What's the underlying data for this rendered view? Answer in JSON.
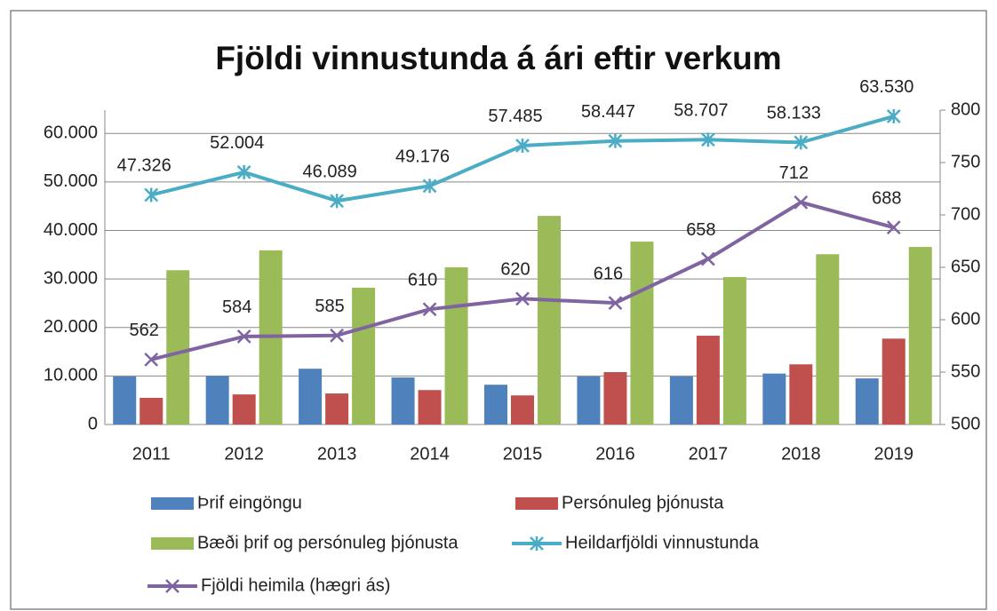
{
  "chart_data": {
    "type": "bar",
    "title": "Fjöldi vinnustunda á ári eftir verkum",
    "categories": [
      "2011",
      "2012",
      "2013",
      "2014",
      "2015",
      "2016",
      "2017",
      "2018",
      "2019"
    ],
    "series": [
      {
        "name": "Þrif eingöngu",
        "type": "bar",
        "color": "#4f81bd",
        "values": [
          9900,
          10000,
          11500,
          9700,
          8200,
          9900,
          9900,
          10500,
          9500
        ]
      },
      {
        "name": "Persónuleg þjónusta",
        "type": "bar",
        "color": "#c0504d",
        "values": [
          5500,
          6200,
          6400,
          7100,
          6000,
          10800,
          18300,
          12400,
          17700
        ]
      },
      {
        "name": "Bæði þrif og persónuleg þjónusta",
        "type": "bar",
        "color": "#9bbb59",
        "values": [
          31800,
          35900,
          28200,
          32400,
          43000,
          37700,
          30400,
          35100,
          36600
        ]
      },
      {
        "name": "Heildarfjöldi vinnustunda",
        "type": "line",
        "marker": "asterisk",
        "color": "#4bacc6",
        "values": [
          47326,
          52004,
          46089,
          49176,
          57485,
          58447,
          58707,
          58133,
          63530
        ],
        "value_labels": [
          "47.326",
          "52.004",
          "46.089",
          "49.176",
          "57.485",
          "58.447",
          "58.707",
          "58.133",
          "63.530"
        ]
      },
      {
        "name": "Fjöldi heimila (hægri ás)",
        "type": "line",
        "marker": "x",
        "color": "#8064a2",
        "axis": "y2",
        "values": [
          562,
          584,
          585,
          610,
          620,
          616,
          658,
          712,
          688
        ]
      }
    ],
    "ylim": [
      0,
      64800
    ],
    "yticks": [
      {
        "value": 0,
        "label": "0"
      },
      {
        "value": 10000,
        "label": "10.000"
      },
      {
        "value": 20000,
        "label": "20.000"
      },
      {
        "value": 30000,
        "label": "30.000"
      },
      {
        "value": 40000,
        "label": "40.000"
      },
      {
        "value": 50000,
        "label": "50.000"
      },
      {
        "value": 60000,
        "label": "60.000"
      }
    ],
    "y2lim": [
      500,
      800
    ],
    "y2ticks": [
      500,
      550,
      600,
      650,
      700,
      750,
      800
    ],
    "grid": true
  }
}
